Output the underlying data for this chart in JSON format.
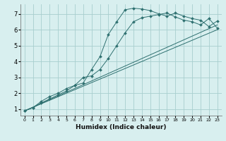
{
  "xlabel": "Humidex (Indice chaleur)",
  "bg_color": "#d8efef",
  "grid_color": "#a8cece",
  "line_color": "#2e7070",
  "xlim": [
    -0.5,
    23.5
  ],
  "ylim": [
    0.6,
    7.6
  ],
  "xticks": [
    0,
    1,
    2,
    3,
    4,
    5,
    6,
    7,
    8,
    9,
    10,
    11,
    12,
    13,
    14,
    15,
    16,
    17,
    18,
    19,
    20,
    21,
    22,
    23
  ],
  "yticks": [
    1,
    2,
    3,
    4,
    5,
    6,
    7
  ],
  "series1_x": [
    0,
    1,
    2,
    3,
    4,
    5,
    6,
    7,
    8,
    9,
    10,
    11,
    12,
    13,
    14,
    15,
    16,
    17,
    18,
    19,
    20,
    21,
    22,
    23
  ],
  "series1_y": [
    0.9,
    1.1,
    1.4,
    1.65,
    1.9,
    2.15,
    2.5,
    2.65,
    3.5,
    4.3,
    5.7,
    6.5,
    7.25,
    7.35,
    7.3,
    7.2,
    7.0,
    6.85,
    7.05,
    6.85,
    6.7,
    6.6,
    6.2,
    6.55
  ],
  "series2_x": [
    0,
    1,
    2,
    3,
    4,
    5,
    6,
    7,
    8,
    9,
    10,
    11,
    12,
    13,
    14,
    15,
    16,
    17,
    18,
    19,
    20,
    21,
    22,
    23
  ],
  "series2_y": [
    0.9,
    1.1,
    1.5,
    1.8,
    2.0,
    2.3,
    2.5,
    3.0,
    3.1,
    3.5,
    4.2,
    5.0,
    5.8,
    6.5,
    6.75,
    6.85,
    6.95,
    7.05,
    6.8,
    6.6,
    6.5,
    6.3,
    6.7,
    6.1
  ],
  "series3_x": [
    0,
    23
  ],
  "series3_y": [
    0.9,
    6.3
  ],
  "series4_x": [
    0,
    23
  ],
  "series4_y": [
    0.9,
    6.0
  ]
}
